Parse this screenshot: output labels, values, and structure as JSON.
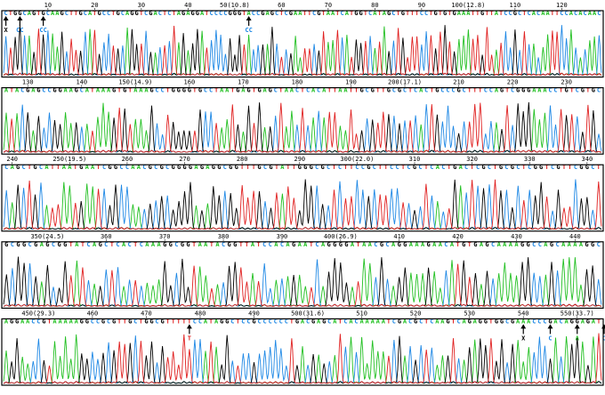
{
  "colors": {
    "A": "#22c022",
    "C": "#1e88e5",
    "G": "#000000",
    "T": "#e02020",
    "marker_blue": "#1e88e5",
    "marker_red": "#e02020",
    "marker_green": "#22c022",
    "marker_black": "#000000",
    "panel_border": "#000000"
  },
  "chart_data": {
    "type": "sequencing-chromatogram",
    "rows": [
      {
        "start": 1,
        "sequence": "CTGGCAGTGCAAGCTTGCATGCCTGCAGGTCGACTCTAGAGGATCCCCGGGTACCGAGCTCGAATTCGTAATCATGGTCATAGCTGTTTCCTGTGTGAAATTGTTATCCGCTCACAATTCCACACAAC",
        "tick_labels": [
          "10",
          "20",
          "30",
          "40",
          "50(10.8)",
          "60",
          "70",
          "80",
          "90",
          "100(12.8)",
          "110",
          "120"
        ],
        "markers": [
          {
            "pos": 1,
            "label": "X",
            "color": "marker_black"
          },
          {
            "pos": 4,
            "label": "CC",
            "color": "marker_blue"
          },
          {
            "pos": 9,
            "label": "CC",
            "color": "marker_blue"
          },
          {
            "pos": 53,
            "label": "CC",
            "color": "marker_blue"
          }
        ]
      },
      {
        "start": 126,
        "sequence": "ATACGAGCCGGAAGCATAAAGTGTAAAGCCTGGGGTGCCTAATGAGTGAGCTAACTCACATTAATTGCGTTGCGCTCACTGCCCGCTTTCCAGTCGGGAAACCTGTCGTGC",
        "tick_labels": [
          "130",
          "140",
          "150(14.9)",
          "160",
          "170",
          "180",
          "190",
          "200(17.1)",
          "210",
          "220",
          "230"
        ],
        "markers": []
      },
      {
        "start": 239,
        "sequence": "CAGCTGCATTAATGAATCGGCCAACGCGCGGGGAGAGGCGGTTTGCGTATTGGGCGCTCTTCCGCTTCCTCGCTCACTGACTCGCTGCGCTCGGTCGTTCGGCT",
        "tick_labels": [
          "240",
          "250(19.5)",
          "260",
          "270",
          "280",
          "290",
          "300(22.0)",
          "310",
          "320",
          "330",
          "340"
        ],
        "markers": []
      },
      {
        "start": 343,
        "sequence": "GCGGCGAGCGGTATCAGCTCACTCAAAGGCGGTAATACGGTTATCCACAGAATCAGGGGATAACGCAGGAAAGAACATGTGAGCAAAAGGCCAGCAAAAGGC",
        "tick_labels": [
          "350(24.5)",
          "360",
          "370",
          "380",
          "390",
          "400(26.9)",
          "410",
          "420",
          "430",
          "440"
        ],
        "markers": []
      },
      {
        "start": 444,
        "sequence": "AGGAACCGTAAAAAGGCCGCGTTGCTGGCGTTTTTCCATAGGCTCCGCCCCCCTGACGAGCATCACAAAAATCGACGCTCAAGTCAGAGGTGGCGAAACCCGACAGGAGAT",
        "tick_labels": [
          "450(29.3)",
          "460",
          "470",
          "480",
          "490",
          "500(31.6)",
          "510",
          "520",
          "530",
          "540",
          "550(33.7)"
        ],
        "markers": [
          {
            "pos": 478,
            "label": "T",
            "color": "marker_red"
          },
          {
            "pos": 540,
            "label": "X",
            "color": "marker_black"
          },
          {
            "pos": 545,
            "label": "C",
            "color": "marker_blue"
          },
          {
            "pos": 550,
            "label": "A",
            "color": "marker_green"
          },
          {
            "pos": 555,
            "label": "C",
            "color": "marker_blue"
          },
          {
            "pos": 556,
            "label": "T",
            "color": "marker_red"
          }
        ]
      }
    ]
  }
}
